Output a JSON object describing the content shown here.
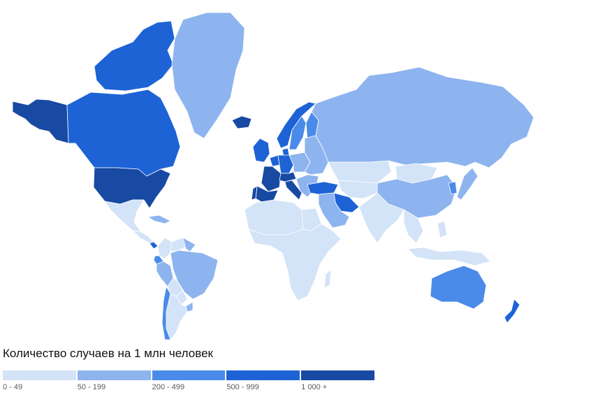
{
  "legend": {
    "title": "Количество случаев на 1 млн человек",
    "bins": [
      {
        "label": "0 - 49",
        "color": "#d3e3f8"
      },
      {
        "label": "50 - 199",
        "color": "#8db4ee"
      },
      {
        "label": "200 - 499",
        "color": "#4a8bea"
      },
      {
        "label": "500 - 999",
        "color": "#1d63d6"
      },
      {
        "label": "1 000 +",
        "color": "#1849a3"
      }
    ]
  },
  "regions": [
    {
      "id": "alaska",
      "bin": 4
    },
    {
      "id": "canada-arctic-islands",
      "bin": 3
    },
    {
      "id": "canada",
      "bin": 3
    },
    {
      "id": "usa",
      "bin": 4
    },
    {
      "id": "mexico",
      "bin": 0
    },
    {
      "id": "central-america",
      "bin": 0
    },
    {
      "id": "caribbean",
      "bin": 1
    },
    {
      "id": "panama",
      "bin": 3
    },
    {
      "id": "colombia",
      "bin": 0
    },
    {
      "id": "venezuela",
      "bin": 0
    },
    {
      "id": "guianas",
      "bin": 1
    },
    {
      "id": "ecuador",
      "bin": 2
    },
    {
      "id": "peru",
      "bin": 1
    },
    {
      "id": "brazil",
      "bin": 1
    },
    {
      "id": "bolivia",
      "bin": 0
    },
    {
      "id": "paraguay",
      "bin": 0
    },
    {
      "id": "argentina",
      "bin": 0
    },
    {
      "id": "uruguay",
      "bin": 1
    },
    {
      "id": "chile",
      "bin": 2
    },
    {
      "id": "greenland",
      "bin": 1
    },
    {
      "id": "iceland",
      "bin": 4
    },
    {
      "id": "uk-ireland",
      "bin": 3
    },
    {
      "id": "portugal",
      "bin": 4
    },
    {
      "id": "spain",
      "bin": 4
    },
    {
      "id": "france",
      "bin": 4
    },
    {
      "id": "benelux",
      "bin": 3
    },
    {
      "id": "germany",
      "bin": 3
    },
    {
      "id": "switzerland-austria",
      "bin": 4
    },
    {
      "id": "italy",
      "bin": 4
    },
    {
      "id": "norway",
      "bin": 3
    },
    {
      "id": "sweden",
      "bin": 2
    },
    {
      "id": "finland",
      "bin": 2
    },
    {
      "id": "denmark",
      "bin": 3
    },
    {
      "id": "poland-czech",
      "bin": 1
    },
    {
      "id": "baltics-belarus-ukraine",
      "bin": 1
    },
    {
      "id": "balkans",
      "bin": 1
    },
    {
      "id": "turkey",
      "bin": 3
    },
    {
      "id": "russia",
      "bin": 1
    },
    {
      "id": "kazakhstan",
      "bin": 0
    },
    {
      "id": "mongolia",
      "bin": 0
    },
    {
      "id": "china",
      "bin": 1
    },
    {
      "id": "korea",
      "bin": 2
    },
    {
      "id": "japan",
      "bin": 1
    },
    {
      "id": "middle-east",
      "bin": 1
    },
    {
      "id": "iran",
      "bin": 3
    },
    {
      "id": "central-asia",
      "bin": 0
    },
    {
      "id": "south-asia",
      "bin": 0
    },
    {
      "id": "southeast-asia",
      "bin": 0
    },
    {
      "id": "indonesia",
      "bin": 0
    },
    {
      "id": "philippines",
      "bin": 0
    },
    {
      "id": "north-africa",
      "bin": 0
    },
    {
      "id": "egypt",
      "bin": 0
    },
    {
      "id": "sub-saharan-africa",
      "bin": 0
    },
    {
      "id": "madagascar",
      "bin": 0
    },
    {
      "id": "australia",
      "bin": 2
    },
    {
      "id": "new-zealand",
      "bin": 3
    }
  ]
}
